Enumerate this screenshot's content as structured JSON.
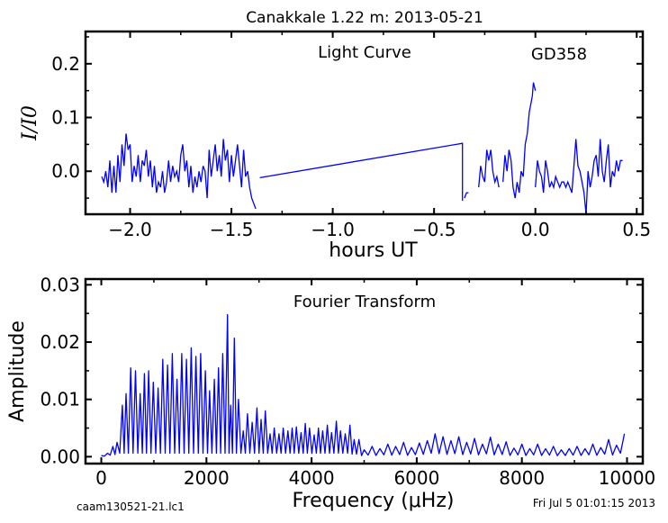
{
  "figure": {
    "suptitle": "Canakkale 1.22 m:  2013-05-21",
    "footer_left": "caam130521-21.lc1",
    "footer_right": "Fri Jul  5 01:01:15 2013"
  },
  "chart_data": [
    {
      "type": "line",
      "title": "Light Curve",
      "annotation": "GD358",
      "xlabel": "hours UT",
      "ylabel": "I/I0",
      "xlim": [
        -2.22,
        0.53
      ],
      "ylim": [
        -0.08,
        0.26
      ],
      "xticks": [
        -2.0,
        -1.5,
        -1.0,
        -0.5,
        0.0,
        0.5
      ],
      "xtick_labels": [
        "−2.0",
        "−1.5",
        "−1.0",
        "−0.5",
        "0.0",
        "0.5"
      ],
      "yticks": [
        0.0,
        0.1,
        0.2
      ],
      "ytick_labels": [
        "0.0",
        "0.1",
        "0.2"
      ],
      "color": "#0000ff",
      "grid": false,
      "segments": [
        [
          [
            -2.14,
            -0.01
          ],
          [
            -2.13,
            -0.02
          ],
          [
            -2.12,
            0.0
          ],
          [
            -2.11,
            -0.03
          ],
          [
            -2.1,
            0.02
          ],
          [
            -2.09,
            -0.04
          ],
          [
            -2.08,
            0.01
          ],
          [
            -2.07,
            -0.04
          ],
          [
            -2.06,
            0.03
          ],
          [
            -2.05,
            -0.02
          ],
          [
            -2.04,
            0.05
          ],
          [
            -2.03,
            0.01
          ],
          [
            -2.02,
            0.07
          ],
          [
            -2.01,
            0.04
          ],
          [
            -2.0,
            0.05
          ],
          [
            -1.99,
            -0.02
          ],
          [
            -1.98,
            0.01
          ],
          [
            -1.97,
            -0.01
          ],
          [
            -1.96,
            0.03
          ],
          [
            -1.95,
            -0.02
          ],
          [
            -1.94,
            0.02
          ],
          [
            -1.93,
            0.01
          ],
          [
            -1.92,
            0.04
          ],
          [
            -1.91,
            -0.01
          ],
          [
            -1.9,
            0.02
          ],
          [
            -1.89,
            -0.03
          ],
          [
            -1.88,
            0.01
          ],
          [
            -1.87,
            -0.04
          ],
          [
            -1.86,
            -0.02
          ],
          [
            -1.85,
            -0.03
          ],
          [
            -1.84,
            0.0
          ],
          [
            -1.83,
            -0.04
          ],
          [
            -1.82,
            -0.02
          ],
          [
            -1.81,
            0.02
          ],
          [
            -1.8,
            -0.02
          ],
          [
            -1.79,
            0.01
          ],
          [
            -1.78,
            -0.01
          ],
          [
            -1.77,
            0.0
          ],
          [
            -1.76,
            -0.02
          ],
          [
            -1.75,
            0.03
          ],
          [
            -1.74,
            0.05
          ],
          [
            -1.73,
            0.0
          ],
          [
            -1.72,
            0.02
          ],
          [
            -1.71,
            -0.03
          ],
          [
            -1.7,
            0.01
          ],
          [
            -1.69,
            -0.04
          ],
          [
            -1.68,
            -0.01
          ],
          [
            -1.67,
            -0.03
          ],
          [
            -1.66,
            0.0
          ],
          [
            -1.65,
            -0.02
          ],
          [
            -1.64,
            0.01
          ],
          [
            -1.63,
            0.0
          ],
          [
            -1.62,
            -0.05
          ],
          [
            -1.61,
            0.04
          ],
          [
            -1.6,
            -0.01
          ],
          [
            -1.59,
            0.02
          ],
          [
            -1.58,
            0.05
          ],
          [
            -1.57,
            0.0
          ],
          [
            -1.56,
            0.03
          ],
          [
            -1.55,
            -0.01
          ],
          [
            -1.54,
            0.06
          ],
          [
            -1.53,
            0.02
          ],
          [
            -1.52,
            0.04
          ],
          [
            -1.51,
            -0.02
          ],
          [
            -1.5,
            0.03
          ],
          [
            -1.49,
            -0.01
          ],
          [
            -1.48,
            0.02
          ],
          [
            -1.47,
            0.05
          ],
          [
            -1.46,
            0.01
          ],
          [
            -1.45,
            -0.03
          ],
          [
            -1.44,
            0.04
          ],
          [
            -1.43,
            -0.01
          ],
          [
            -1.42,
            0.0
          ],
          [
            -1.41,
            -0.03
          ],
          [
            -1.4,
            -0.05
          ],
          [
            -1.38,
            -0.07
          ]
        ],
        [
          [
            -1.36,
            -0.012
          ],
          [
            -0.36,
            0.052
          ],
          [
            -0.36,
            -0.055
          ]
        ],
        [
          [
            -0.35,
            -0.05
          ],
          [
            -0.34,
            -0.04
          ],
          [
            -0.33,
            -0.04
          ]
        ],
        [
          [
            -0.28,
            -0.03
          ],
          [
            -0.27,
            0.01
          ],
          [
            -0.26,
            -0.01
          ],
          [
            -0.25,
            -0.02
          ],
          [
            -0.24,
            0.04
          ],
          [
            -0.23,
            0.02
          ],
          [
            -0.22,
            0.04
          ],
          [
            -0.21,
            0.0
          ],
          [
            -0.2,
            -0.02
          ],
          [
            -0.19,
            -0.01
          ],
          [
            -0.18,
            -0.03
          ]
        ],
        [
          [
            -0.16,
            -0.02
          ],
          [
            -0.15,
            0.03
          ],
          [
            -0.14,
            0.0
          ],
          [
            -0.13,
            0.04
          ],
          [
            -0.12,
            0.02
          ],
          [
            -0.11,
            -0.03
          ],
          [
            -0.1,
            -0.05
          ],
          [
            -0.09,
            -0.02
          ],
          [
            -0.08,
            -0.04
          ],
          [
            -0.07,
            0.0
          ],
          [
            -0.06,
            -0.01
          ],
          [
            -0.05,
            0.05
          ],
          [
            -0.04,
            0.07
          ],
          [
            -0.03,
            0.11
          ],
          [
            -0.02,
            0.13
          ],
          [
            -0.015,
            0.14
          ],
          [
            -0.01,
            0.165
          ],
          [
            0.0,
            0.15
          ]
        ],
        [
          [
            0.0,
            -0.03
          ],
          [
            0.01,
            0.02
          ],
          [
            0.02,
            0.0
          ],
          [
            0.03,
            -0.01
          ],
          [
            0.04,
            -0.04
          ],
          [
            0.05,
            0.02
          ],
          [
            0.06,
            0.0
          ],
          [
            0.07,
            -0.03
          ],
          [
            0.08,
            -0.02
          ],
          [
            0.09,
            -0.03
          ],
          [
            0.1,
            -0.01
          ],
          [
            0.11,
            -0.02
          ],
          [
            0.12,
            -0.03
          ],
          [
            0.13,
            -0.02
          ],
          [
            0.14,
            -0.02
          ],
          [
            0.15,
            -0.03
          ],
          [
            0.16,
            -0.02
          ],
          [
            0.17,
            -0.03
          ],
          [
            0.18,
            -0.04
          ],
          [
            0.19,
            0.01
          ],
          [
            0.2,
            0.06
          ],
          [
            0.21,
            0.01
          ],
          [
            0.22,
            0.0
          ],
          [
            0.23,
            -0.02
          ],
          [
            0.24,
            -0.04
          ],
          [
            0.25,
            -0.08
          ],
          [
            0.26,
            0.0
          ],
          [
            0.27,
            -0.03
          ],
          [
            0.28,
            -0.01
          ],
          [
            0.29,
            0.02
          ],
          [
            0.3,
            0.03
          ],
          [
            0.31,
            -0.01
          ],
          [
            0.32,
            0.06
          ],
          [
            0.33,
            0.0
          ],
          [
            0.34,
            -0.02
          ],
          [
            0.35,
            0.02
          ],
          [
            0.36,
            0.05
          ],
          [
            0.37,
            -0.03
          ],
          [
            0.38,
            0.0
          ],
          [
            0.39,
            -0.01
          ],
          [
            0.4,
            0.02
          ],
          [
            0.41,
            0.0
          ],
          [
            0.42,
            0.02
          ],
          [
            0.43,
            0.02
          ]
        ]
      ]
    },
    {
      "type": "line",
      "title": "Fourier Transform",
      "xlabel": "Frequency (μHz)",
      "ylabel": "Amplitude",
      "xlim": [
        -300,
        10300
      ],
      "ylim": [
        -0.0012,
        0.031
      ],
      "xticks": [
        0,
        2000,
        4000,
        6000,
        8000,
        10000
      ],
      "xtick_labels": [
        "0",
        "2000",
        "4000",
        "6000",
        "8000",
        "10000"
      ],
      "yticks": [
        0.0,
        0.01,
        0.02,
        0.03
      ],
      "ytick_labels": [
        "0.00",
        "0.01",
        "0.02",
        "0.03"
      ],
      "color": "#0000ff",
      "grid": false,
      "peaks": [
        [
          120,
          0.0006
        ],
        [
          220,
          0.0018
        ],
        [
          300,
          0.0025
        ],
        [
          400,
          0.009
        ],
        [
          470,
          0.011
        ],
        [
          560,
          0.0155
        ],
        [
          650,
          0.015
        ],
        [
          740,
          0.011
        ],
        [
          820,
          0.0145
        ],
        [
          900,
          0.015
        ],
        [
          990,
          0.013
        ],
        [
          1080,
          0.012
        ],
        [
          1170,
          0.017
        ],
        [
          1260,
          0.016
        ],
        [
          1350,
          0.018
        ],
        [
          1440,
          0.0135
        ],
        [
          1530,
          0.018
        ],
        [
          1620,
          0.017
        ],
        [
          1710,
          0.019
        ],
        [
          1800,
          0.0175
        ],
        [
          1890,
          0.018
        ],
        [
          1980,
          0.015
        ],
        [
          2060,
          0.0115
        ],
        [
          2150,
          0.0135
        ],
        [
          2230,
          0.0155
        ],
        [
          2310,
          0.018
        ],
        [
          2400,
          0.0248
        ],
        [
          2460,
          0.009
        ],
        [
          2530,
          0.0207
        ],
        [
          2610,
          0.01
        ],
        [
          2700,
          0.0045
        ],
        [
          2780,
          0.0075
        ],
        [
          2870,
          0.006
        ],
        [
          2960,
          0.0085
        ],
        [
          3040,
          0.0065
        ],
        [
          3120,
          0.008
        ],
        [
          3210,
          0.004
        ],
        [
          3290,
          0.005
        ],
        [
          3380,
          0.004
        ],
        [
          3460,
          0.005
        ],
        [
          3550,
          0.0045
        ],
        [
          3630,
          0.005
        ],
        [
          3710,
          0.0052
        ],
        [
          3800,
          0.0042
        ],
        [
          3880,
          0.0058
        ],
        [
          3960,
          0.005
        ],
        [
          4050,
          0.0038
        ],
        [
          4130,
          0.005
        ],
        [
          4210,
          0.0045
        ],
        [
          4300,
          0.0055
        ],
        [
          4380,
          0.0042
        ],
        [
          4470,
          0.0062
        ],
        [
          4550,
          0.0045
        ],
        [
          4640,
          0.004
        ],
        [
          4730,
          0.0055
        ],
        [
          4810,
          0.003
        ],
        [
          4900,
          0.003
        ],
        [
          5000,
          0.0012
        ],
        [
          5150,
          0.0018
        ],
        [
          5300,
          0.0014
        ],
        [
          5450,
          0.0022
        ],
        [
          5600,
          0.0018
        ],
        [
          5750,
          0.0025
        ],
        [
          5900,
          0.0016
        ],
        [
          6050,
          0.0024
        ],
        [
          6200,
          0.0028
        ],
        [
          6350,
          0.004
        ],
        [
          6500,
          0.0035
        ],
        [
          6650,
          0.0028
        ],
        [
          6800,
          0.0035
        ],
        [
          6950,
          0.0025
        ],
        [
          7100,
          0.0032
        ],
        [
          7250,
          0.0022
        ],
        [
          7400,
          0.0034
        ],
        [
          7550,
          0.0022
        ],
        [
          7700,
          0.0026
        ],
        [
          7850,
          0.0015
        ],
        [
          8000,
          0.0022
        ],
        [
          8150,
          0.0014
        ],
        [
          8300,
          0.0022
        ],
        [
          8450,
          0.0014
        ],
        [
          8600,
          0.0018
        ],
        [
          8750,
          0.0012
        ],
        [
          8900,
          0.0014
        ],
        [
          9050,
          0.0018
        ],
        [
          9200,
          0.0014
        ],
        [
          9350,
          0.0022
        ],
        [
          9500,
          0.0016
        ],
        [
          9650,
          0.003
        ],
        [
          9800,
          0.002
        ],
        [
          9950,
          0.004
        ]
      ]
    }
  ]
}
